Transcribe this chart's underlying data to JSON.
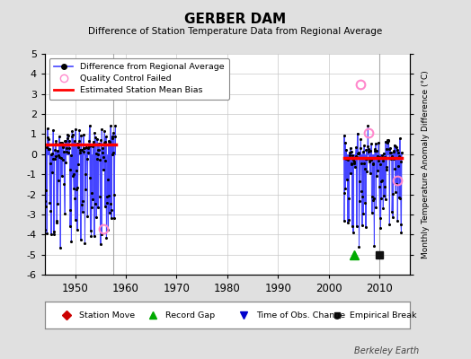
{
  "title": "GERBER DAM",
  "subtitle": "Difference of Station Temperature Data from Regional Average",
  "ylabel": "Monthly Temperature Anomaly Difference (°C)",
  "xlabel_year_ticks": [
    1950,
    1960,
    1970,
    1980,
    1990,
    2000,
    2010
  ],
  "xlim": [
    1944.0,
    2016.0
  ],
  "ylim": [
    -6,
    5
  ],
  "yticks": [
    -6,
    -5,
    -4,
    -3,
    -2,
    -1,
    0,
    1,
    2,
    3,
    4,
    5
  ],
  "background_color": "#e0e0e0",
  "plot_bg_color": "#ffffff",
  "grid_color": "#c8c8c8",
  "bias_line_color": "#ff0000",
  "data_line_color": "#4444ff",
  "data_marker_color": "#000000",
  "qc_failed_color": "#ff88cc",
  "watermark": "Berkeley Earth",
  "period1_bias": 0.48,
  "period2_bias": -0.18,
  "period1_start": 1944.0,
  "period1_end": 1958.0,
  "period2_start": 2003.0,
  "period2_end": 2014.5,
  "record_gap_x": 2005.0,
  "record_gap_y": -5.0,
  "empirical_break_x": 2010.0,
  "empirical_break_y": -5.0,
  "vertical_line1_x": 1957.5,
  "vertical_line2_x": 2010.0,
  "qc_failed_points": [
    [
      1955.5,
      -3.7
    ],
    [
      2006.3,
      3.5
    ],
    [
      2007.8,
      1.05
    ],
    [
      2013.5,
      -1.3
    ]
  ],
  "seed1": 42,
  "seed2": 99
}
